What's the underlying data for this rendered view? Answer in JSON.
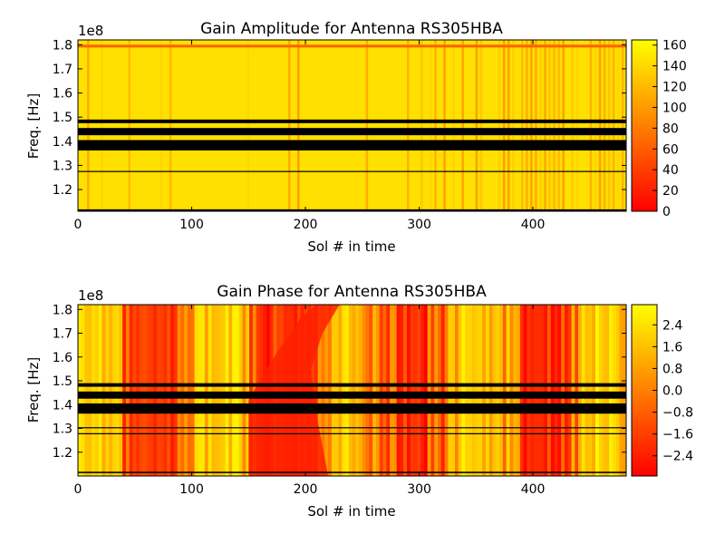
{
  "chart_data": [
    {
      "type": "heatmap",
      "title": "Gain Amplitude for Antenna RS305HBA",
      "xlabel": "Sol # in time",
      "ylabel": "Freq. [Hz]",
      "y_offset_label": "1e8",
      "xlim": [
        0,
        482
      ],
      "ylim": [
        1.11,
        1.82
      ],
      "xticks": [
        "0",
        "100",
        "200",
        "300",
        "400"
      ],
      "yticks": [
        "1.2",
        "1.3",
        "1.4",
        "1.5",
        "1.6",
        "1.7",
        "1.8"
      ],
      "colorbar": {
        "range": [
          0,
          165
        ],
        "ticks": [
          "0",
          "20",
          "40",
          "60",
          "80",
          "100",
          "120",
          "140",
          "160"
        ],
        "colors": [
          "#ff0000",
          "#ffff00"
        ]
      },
      "flagged_bands": [
        [
          1.475,
          1.49
        ],
        [
          1.425,
          1.455
        ],
        [
          1.362,
          1.405
        ],
        [
          1.273,
          1.277
        ],
        [
          1.112,
          1.118
        ]
      ],
      "typical_value": 145
    },
    {
      "type": "heatmap",
      "title": "Gain Phase for Antenna RS305HBA",
      "xlabel": "Sol # in time",
      "ylabel": "Freq. [Hz]",
      "y_offset_label": "1e8",
      "xlim": [
        0,
        482
      ],
      "ylim": [
        1.1,
        1.82
      ],
      "xticks": [
        "0",
        "100",
        "200",
        "300",
        "400"
      ],
      "yticks": [
        "1.2",
        "1.3",
        "1.4",
        "1.5",
        "1.6",
        "1.7",
        "1.8"
      ],
      "colorbar": {
        "range": [
          -3.14,
          3.14
        ],
        "ticks": [
          "−2.4",
          "−1.6",
          "−0.8",
          "0.0",
          "0.8",
          "1.6",
          "2.4"
        ],
        "colors": [
          "#ff0000",
          "#ffff00"
        ]
      },
      "flagged_bands": [
        [
          1.475,
          1.49
        ],
        [
          1.425,
          1.455
        ],
        [
          1.362,
          1.405
        ],
        [
          1.303,
          1.305
        ],
        [
          1.277,
          1.28
        ],
        [
          1.112,
          1.118
        ]
      ]
    }
  ]
}
